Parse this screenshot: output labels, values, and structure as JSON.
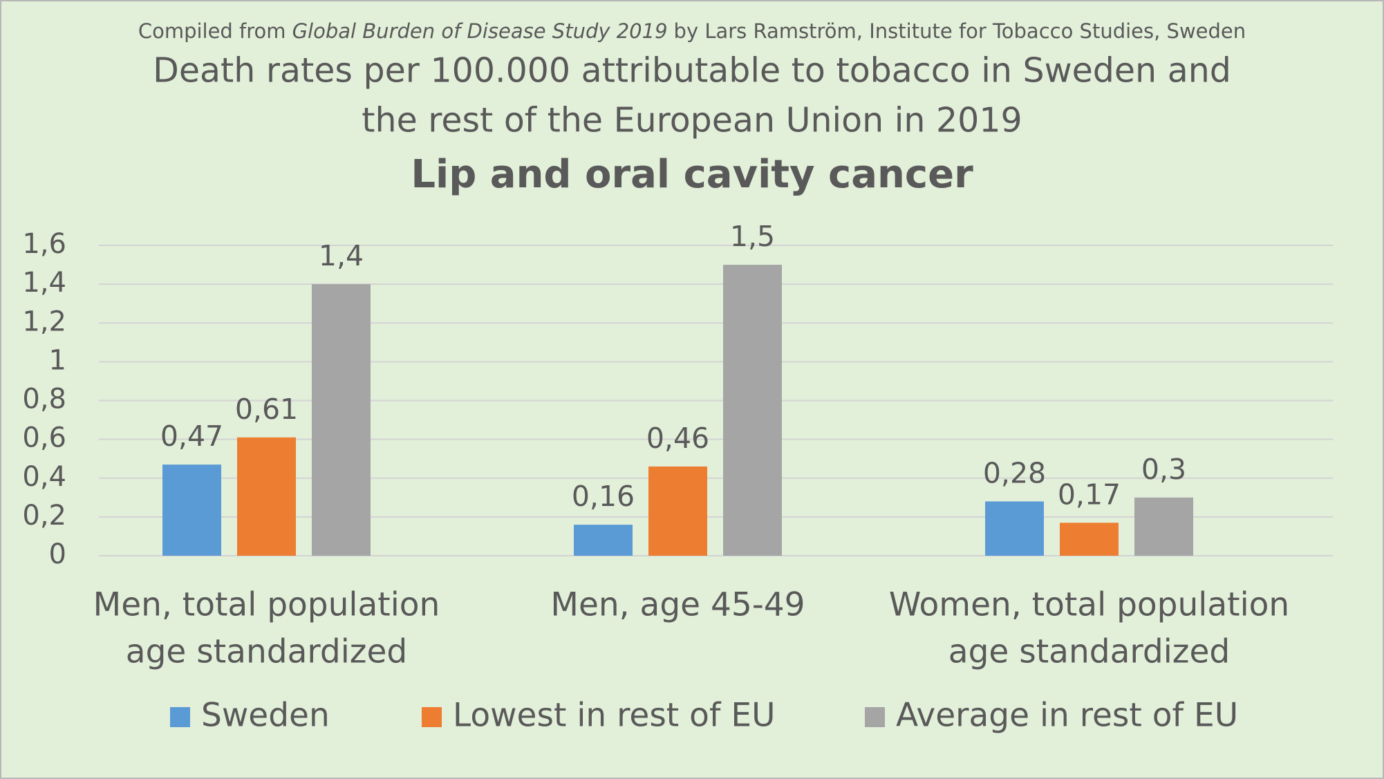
{
  "chart_data": {
    "type": "bar",
    "source": {
      "before": "Compiled from",
      "work": "Global Burden of Disease Study 2019",
      "after": "by Lars Ramström, Institute for Tobacco Studies, Sweden"
    },
    "title": [
      "Death rates per 100.000 attributable to tobacco in Sweden and",
      "the rest of the European Union in 2019"
    ],
    "subtitle": "Lip and oral cavity cancer",
    "categories": [
      [
        "Men, total population",
        "age standardized"
      ],
      [
        "Men, age 45-49"
      ],
      [
        "Women, total population",
        "age standardized"
      ]
    ],
    "series": [
      {
        "name": "Sweden",
        "color": "#5b9bd5",
        "values": [
          0.47,
          0.16,
          0.28
        ],
        "value_labels": [
          "0,47",
          "0,16",
          "0,28"
        ]
      },
      {
        "name": "Lowest in rest of EU",
        "color": "#ed7d31",
        "values": [
          0.61,
          0.46,
          0.17
        ],
        "value_labels": [
          "0,61",
          "0,46",
          "0,17"
        ]
      },
      {
        "name": "Average in rest of EU",
        "color": "#a5a5a5",
        "values": [
          1.4,
          1.5,
          0.3
        ],
        "value_labels": [
          "1,4",
          "1,5",
          "0,3"
        ]
      }
    ],
    "ylim": [
      0,
      1.6
    ],
    "yticks": [
      0,
      {
        "value": 0.2,
        "label": "0,2"
      },
      {
        "value": 0.4,
        "label": "0,4"
      },
      {
        "value": 0.6,
        "label": "0,6"
      },
      {
        "value": 0.8,
        "label": "0,8"
      },
      1,
      {
        "value": 1.2,
        "label": "1,2"
      },
      {
        "value": 1.4,
        "label": "1,4"
      },
      {
        "value": 1.6,
        "label": "1,6"
      }
    ],
    "grid": true,
    "legend": "bottom"
  }
}
